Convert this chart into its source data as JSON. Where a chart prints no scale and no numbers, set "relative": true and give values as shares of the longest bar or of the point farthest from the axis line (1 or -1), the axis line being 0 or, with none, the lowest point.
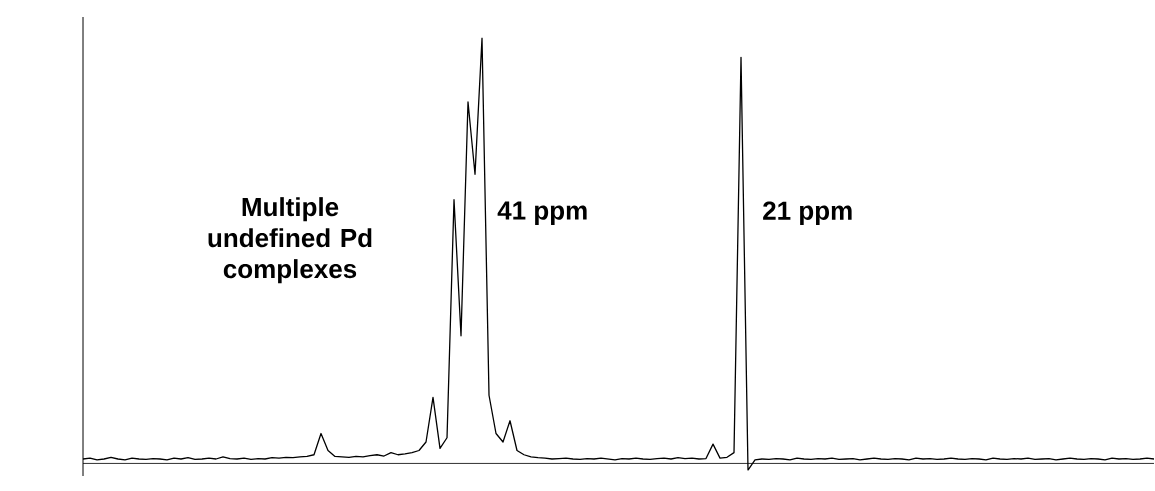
{
  "chart_data": {
    "type": "line",
    "relative": true,
    "color": "#000000",
    "categories": [
      null,
      null,
      null,
      null,
      null,
      null,
      null,
      null,
      null,
      null,
      null,
      null,
      null,
      null,
      null,
      null,
      null,
      null,
      null,
      null,
      null,
      null,
      null,
      null,
      null,
      null,
      null,
      null,
      null,
      null,
      null,
      null,
      null,
      null,
      null,
      null,
      null,
      null,
      null,
      null,
      null,
      null,
      null,
      null,
      null,
      null,
      null,
      null,
      null,
      null,
      null,
      null,
      null,
      null,
      null,
      null,
      null,
      null,
      null,
      null,
      null,
      null,
      null,
      null,
      null,
      null,
      null,
      null,
      null,
      null,
      null,
      null,
      null,
      null,
      null,
      null,
      null,
      null,
      null,
      null,
      null,
      null,
      null,
      null,
      null,
      null,
      null,
      null,
      null,
      null,
      null,
      null,
      null,
      null,
      null,
      null,
      null,
      null,
      null,
      null,
      null,
      null,
      null,
      null,
      null,
      null,
      null,
      null,
      null,
      null,
      null,
      null,
      null,
      null,
      null,
      null,
      null,
      null,
      null,
      null,
      null,
      null,
      null,
      null,
      null,
      null,
      null,
      null,
      null,
      null,
      null,
      null,
      null,
      null,
      null,
      null,
      null,
      null,
      null,
      null,
      null,
      null,
      null,
      null,
      null,
      null,
      null,
      null,
      null,
      null,
      null,
      null,
      null,
      null
    ],
    "values": [
      0.01,
      0.012,
      0.008,
      0.01,
      0.014,
      0.01,
      0.008,
      0.012,
      0.01,
      0.009,
      0.011,
      0.01,
      0.008,
      0.012,
      0.01,
      0.013,
      0.009,
      0.01,
      0.012,
      0.01,
      0.015,
      0.011,
      0.01,
      0.012,
      0.009,
      0.011,
      0.01,
      0.013,
      0.012,
      0.014,
      0.013,
      0.015,
      0.016,
      0.02,
      0.07,
      0.03,
      0.016,
      0.015,
      0.014,
      0.016,
      0.015,
      0.018,
      0.02,
      0.017,
      0.025,
      0.02,
      0.022,
      0.025,
      0.03,
      0.05,
      0.155,
      0.035,
      0.06,
      0.62,
      0.3,
      0.85,
      0.68,
      1.0,
      0.16,
      0.07,
      0.05,
      0.1,
      0.03,
      0.02,
      0.015,
      0.013,
      0.012,
      0.01,
      0.011,
      0.012,
      0.01,
      0.009,
      0.011,
      0.01,
      0.012,
      0.01,
      0.008,
      0.011,
      0.01,
      0.012,
      0.01,
      0.009,
      0.011,
      0.012,
      0.01,
      0.013,
      0.011,
      0.012,
      0.01,
      0.011,
      0.045,
      0.012,
      0.014,
      0.025,
      0.955,
      -0.016,
      0.008,
      0.01,
      0.009,
      0.011,
      0.01,
      0.008,
      0.012,
      0.01,
      0.009,
      0.011,
      0.01,
      0.012,
      0.009,
      0.01,
      0.011,
      0.008,
      0.01,
      0.012,
      0.01,
      0.009,
      0.011,
      0.01,
      0.008,
      0.012,
      0.01,
      0.011,
      0.009,
      0.01,
      0.012,
      0.01,
      0.009,
      0.011,
      0.01,
      0.008,
      0.012,
      0.01,
      0.009,
      0.011,
      0.01,
      0.012,
      0.009,
      0.01,
      0.011,
      0.008,
      0.01,
      0.012,
      0.01,
      0.009,
      0.011,
      0.01,
      0.008,
      0.012,
      0.01,
      0.011,
      0.009,
      0.01,
      0.012,
      0.01
    ],
    "annotations": [
      "Multiple undefined Pd complexes",
      "41 ppm",
      "21 ppm"
    ]
  }
}
